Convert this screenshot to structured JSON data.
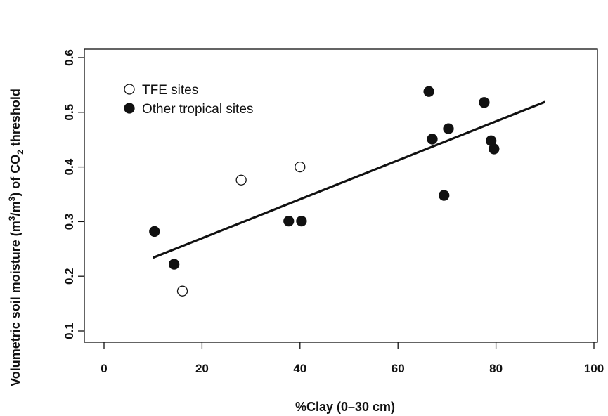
{
  "chart_data": {
    "type": "scatter",
    "xlabel": "%Clay (0–30 cm)",
    "ylabel_parts": {
      "a": "Volumetric soil moisture  (m",
      "sup1": "3",
      "b": "/m",
      "sup2": "3",
      "c": ") of CO",
      "sub": "2",
      "d": " threshold"
    },
    "xlim": [
      0,
      100
    ],
    "ylim": [
      0.1,
      0.6
    ],
    "xticks": [
      0,
      20,
      40,
      60,
      80,
      100
    ],
    "yticks": [
      0.1,
      0.2,
      0.3,
      0.4,
      0.5,
      0.6
    ],
    "grid": false,
    "legend": {
      "position": "top-left",
      "entries": [
        "TFE sites",
        "Other tropical sites"
      ]
    },
    "series": [
      {
        "name": "TFE sites",
        "marker": "open-circle",
        "points": [
          {
            "x": 16,
            "y": 0.173
          },
          {
            "x": 28,
            "y": 0.376
          },
          {
            "x": 40,
            "y": 0.4
          }
        ]
      },
      {
        "name": "Other tropical sites",
        "marker": "filled-circle",
        "points": [
          {
            "x": 10.3,
            "y": 0.282
          },
          {
            "x": 14.3,
            "y": 0.222
          },
          {
            "x": 37.7,
            "y": 0.301
          },
          {
            "x": 40.3,
            "y": 0.301
          },
          {
            "x": 66.3,
            "y": 0.538
          },
          {
            "x": 67,
            "y": 0.451
          },
          {
            "x": 69.4,
            "y": 0.348
          },
          {
            "x": 70.3,
            "y": 0.47
          },
          {
            "x": 77.6,
            "y": 0.518
          },
          {
            "x": 79,
            "y": 0.448
          },
          {
            "x": 79.6,
            "y": 0.433
          }
        ]
      }
    ],
    "fit_line": {
      "x": [
        10,
        90
      ],
      "y": [
        0.234,
        0.519
      ]
    }
  }
}
